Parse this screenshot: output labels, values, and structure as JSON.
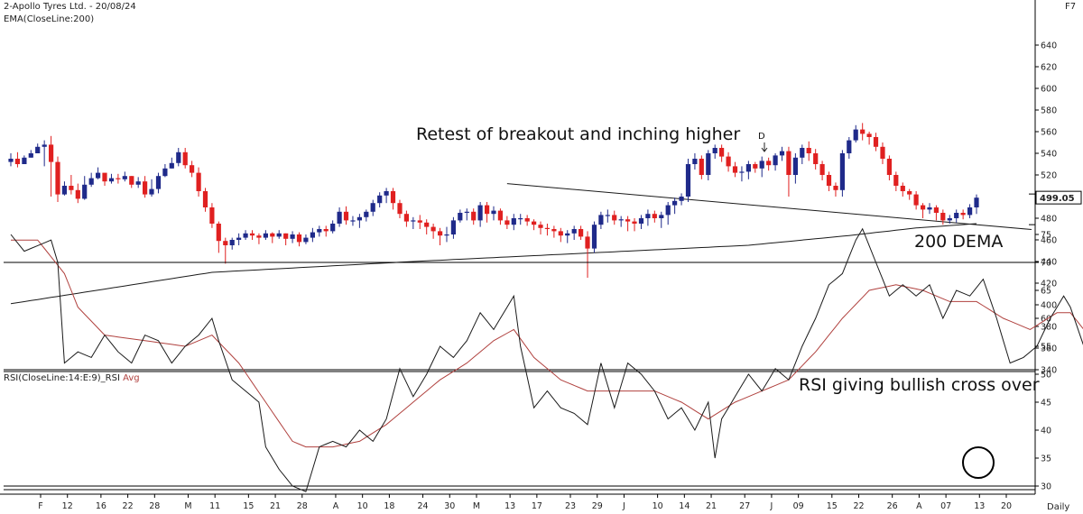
{
  "header": {
    "title": "2-Apollo Tyres Ltd. - 20/08/24",
    "indicator": "EMA(CloseLine:200)",
    "function_key": "F7",
    "rsi_label": "RSI(CloseLine:14:E:9)_RSI",
    "rsi_avg_label": "Avg",
    "timeframe": "Daily"
  },
  "annotations": {
    "breakout_note": "Retest of breakout and inching higher",
    "ema_note": "200 DEMA",
    "rsi_note": "RSI giving bullish cross over",
    "marker_d": "D"
  },
  "colors": {
    "bull": "#1f2a8a",
    "bear": "#e02020",
    "line": "#1a1a1a",
    "rsi_avg": "#b0413e",
    "price_box": "#ffffff"
  },
  "chart_data": [
    {
      "type": "candlestick",
      "title": "2-Apollo Tyres Ltd. - 20/08/24",
      "ylim": [
        340,
        650
      ],
      "yticks": [
        340,
        360,
        380,
        400,
        420,
        440,
        460,
        480,
        500,
        520,
        540,
        560,
        580,
        600,
        620,
        640
      ],
      "last_price": "499.05",
      "x_tick_labels": [
        "F",
        "12",
        "16",
        "22",
        "28",
        "M",
        "11",
        "15",
        "21",
        "28",
        "A",
        "10",
        "18",
        "24",
        "30",
        "M",
        "13",
        "17",
        "23",
        "29",
        "J",
        "10",
        "14",
        "21",
        "27",
        "J",
        "09",
        "15",
        "22",
        "26",
        "A",
        "07",
        "13",
        "20"
      ],
      "close": [
        535,
        530,
        536,
        540,
        546,
        548,
        532,
        502,
        510,
        506,
        498,
        511,
        517,
        522,
        514,
        517,
        516,
        519,
        511,
        514,
        502,
        507,
        519,
        526,
        531,
        541,
        529,
        522,
        505,
        490,
        475,
        459,
        455,
        460,
        462,
        466,
        464,
        462,
        466,
        463,
        466,
        461,
        465,
        458,
        462,
        467,
        470,
        468,
        475,
        486,
        478,
        478,
        481,
        486,
        494,
        501,
        505,
        494,
        484,
        477,
        478,
        476,
        472,
        468,
        464,
        465,
        478,
        485,
        486,
        478,
        492,
        484,
        487,
        478,
        474,
        480,
        480,
        477,
        474,
        471,
        470,
        468,
        464,
        466,
        470,
        463,
        452,
        474,
        483,
        483,
        478,
        479,
        477,
        475,
        480,
        484,
        480,
        483,
        492,
        496,
        500,
        530,
        535,
        520,
        540,
        545,
        537,
        528,
        522,
        523,
        530,
        526,
        533,
        529,
        538,
        542,
        520,
        536,
        545,
        540,
        530,
        520,
        510,
        506,
        540,
        552,
        562,
        558,
        555,
        546,
        535,
        520,
        510,
        505,
        502,
        492,
        488,
        490,
        485,
        478,
        480,
        485,
        483,
        490,
        499
      ],
      "high": [
        540,
        541,
        538,
        543,
        549,
        552,
        556,
        537,
        514,
        520,
        512,
        519,
        522,
        527,
        519,
        521,
        521,
        523,
        519,
        518,
        519,
        516,
        522,
        530,
        536,
        545,
        545,
        533,
        527,
        508,
        494,
        477,
        462,
        462,
        466,
        469,
        469,
        466,
        469,
        467,
        469,
        466,
        468,
        467,
        465,
        471,
        473,
        473,
        478,
        490,
        491,
        482,
        484,
        488,
        497,
        504,
        508,
        508,
        497,
        487,
        481,
        483,
        479,
        475,
        471,
        472,
        481,
        488,
        489,
        489,
        495,
        495,
        491,
        489,
        482,
        484,
        484,
        483,
        479,
        477,
        475,
        473,
        471,
        469,
        473,
        473,
        468,
        477,
        486,
        488,
        487,
        482,
        482,
        480,
        483,
        488,
        487,
        486,
        495,
        499,
        503,
        535,
        540,
        538,
        543,
        548,
        548,
        541,
        532,
        528,
        533,
        532,
        537,
        536,
        540,
        546,
        546,
        540,
        548,
        551,
        544,
        533,
        523,
        513,
        543,
        555,
        566,
        568,
        560,
        559,
        550,
        538,
        523,
        513,
        507,
        505,
        494,
        494,
        492,
        488,
        483,
        488,
        488,
        493,
        502
      ],
      "low": [
        528,
        527,
        532,
        536,
        542,
        528,
        500,
        495,
        501,
        502,
        494,
        497,
        509,
        516,
        510,
        512,
        512,
        514,
        508,
        508,
        499,
        500,
        503,
        518,
        526,
        528,
        526,
        518,
        500,
        486,
        471,
        448,
        438,
        451,
        455,
        460,
        460,
        456,
        460,
        457,
        461,
        455,
        457,
        454,
        456,
        458,
        463,
        463,
        466,
        472,
        474,
        473,
        471,
        477,
        482,
        490,
        494,
        488,
        480,
        472,
        470,
        470,
        465,
        461,
        455,
        458,
        461,
        476,
        478,
        474,
        472,
        476,
        478,
        474,
        470,
        469,
        474,
        473,
        469,
        465,
        464,
        462,
        458,
        457,
        460,
        460,
        425,
        448,
        470,
        476,
        474,
        472,
        468,
        468,
        470,
        473,
        476,
        471,
        474,
        484,
        492,
        495,
        525,
        516,
        515,
        535,
        532,
        523,
        518,
        514,
        516,
        522,
        518,
        524,
        524,
        533,
        500,
        512,
        530,
        533,
        525,
        515,
        505,
        500,
        500,
        535,
        550,
        552,
        548,
        542,
        530,
        515,
        505,
        500,
        497,
        488,
        480,
        484,
        478,
        474,
        475,
        476,
        479,
        480,
        484
      ],
      "ema200_anchors": [
        [
          0,
          401
        ],
        [
          30,
          430
        ],
        [
          60,
          440
        ],
        [
          90,
          449
        ],
        [
          110,
          455
        ],
        [
          125,
          464
        ],
        [
          135,
          471
        ],
        [
          144,
          475
        ]
      ],
      "trendline_points": [
        [
          74,
          512
        ],
        [
          144,
          474
        ]
      ],
      "annotations": [
        "Retest of breakout and inching higher",
        "200 DEMA"
      ]
    },
    {
      "type": "line",
      "title": "RSI(CloseLine:14:E:9)_RSI",
      "ylim": [
        27,
        80
      ],
      "yticks": [
        30,
        35,
        40,
        45,
        50,
        55,
        60,
        65,
        70,
        75
      ],
      "hlines": [
        70,
        30
      ],
      "series_names": [
        "RSI",
        "Avg"
      ],
      "rsi_anchors": [
        [
          0,
          75
        ],
        [
          2,
          72
        ],
        [
          6,
          74
        ],
        [
          7,
          70
        ],
        [
          8,
          52
        ],
        [
          10,
          54
        ],
        [
          12,
          53
        ],
        [
          14,
          57
        ],
        [
          16,
          54
        ],
        [
          18,
          52
        ],
        [
          20,
          57
        ],
        [
          22,
          56
        ],
        [
          24,
          52
        ],
        [
          26,
          55
        ],
        [
          28,
          57
        ],
        [
          30,
          60
        ],
        [
          31,
          56
        ],
        [
          33,
          49
        ],
        [
          35,
          47
        ],
        [
          37,
          45
        ],
        [
          38,
          37
        ],
        [
          40,
          33
        ],
        [
          42,
          30
        ],
        [
          44,
          29
        ],
        [
          46,
          37
        ],
        [
          48,
          38
        ],
        [
          50,
          37
        ],
        [
          52,
          40
        ],
        [
          54,
          38
        ],
        [
          56,
          42
        ],
        [
          58,
          51
        ],
        [
          60,
          46
        ],
        [
          62,
          50
        ],
        [
          64,
          55
        ],
        [
          66,
          53
        ],
        [
          68,
          56
        ],
        [
          70,
          61
        ],
        [
          72,
          58
        ],
        [
          74,
          62
        ],
        [
          75,
          64
        ],
        [
          76,
          55
        ],
        [
          78,
          44
        ],
        [
          80,
          47
        ],
        [
          82,
          44
        ],
        [
          84,
          43
        ],
        [
          86,
          41
        ],
        [
          88,
          52
        ],
        [
          90,
          44
        ],
        [
          92,
          52
        ],
        [
          94,
          50
        ],
        [
          96,
          47
        ],
        [
          98,
          42
        ],
        [
          100,
          44
        ],
        [
          102,
          40
        ],
        [
          104,
          45
        ],
        [
          105,
          35
        ],
        [
          106,
          42
        ],
        [
          108,
          46
        ],
        [
          110,
          50
        ],
        [
          112,
          47
        ],
        [
          114,
          51
        ],
        [
          116,
          49
        ],
        [
          118,
          55
        ],
        [
          120,
          60
        ],
        [
          122,
          66
        ],
        [
          124,
          68
        ],
        [
          126,
          74
        ],
        [
          127,
          76
        ],
        [
          129,
          70
        ],
        [
          131,
          64
        ],
        [
          133,
          66
        ],
        [
          135,
          64
        ],
        [
          137,
          66
        ],
        [
          139,
          60
        ],
        [
          141,
          65
        ],
        [
          143,
          64
        ],
        [
          145,
          67
        ],
        [
          147,
          60
        ],
        [
          149,
          52
        ],
        [
          151,
          53
        ],
        [
          153,
          55
        ],
        [
          155,
          60
        ],
        [
          157,
          64
        ],
        [
          158,
          62
        ],
        [
          160,
          55
        ],
        [
          162,
          44
        ],
        [
          164,
          38
        ],
        [
          166,
          36
        ],
        [
          168,
          35
        ],
        [
          169,
          34
        ],
        [
          170,
          37
        ],
        [
          172,
          43
        ]
      ],
      "avg_anchors": [
        [
          0,
          74
        ],
        [
          4,
          74
        ],
        [
          8,
          68
        ],
        [
          10,
          62
        ],
        [
          14,
          57
        ],
        [
          20,
          56
        ],
        [
          26,
          55
        ],
        [
          30,
          57
        ],
        [
          34,
          52
        ],
        [
          38,
          45
        ],
        [
          42,
          38
        ],
        [
          44,
          37
        ],
        [
          48,
          37
        ],
        [
          52,
          38
        ],
        [
          56,
          41
        ],
        [
          60,
          45
        ],
        [
          64,
          49
        ],
        [
          68,
          52
        ],
        [
          72,
          56
        ],
        [
          75,
          58
        ],
        [
          78,
          53
        ],
        [
          82,
          49
        ],
        [
          86,
          47
        ],
        [
          90,
          47
        ],
        [
          96,
          47
        ],
        [
          100,
          45
        ],
        [
          104,
          42
        ],
        [
          108,
          45
        ],
        [
          112,
          47
        ],
        [
          116,
          49
        ],
        [
          120,
          54
        ],
        [
          124,
          60
        ],
        [
          128,
          65
        ],
        [
          132,
          66
        ],
        [
          136,
          65
        ],
        [
          140,
          63
        ],
        [
          144,
          63
        ],
        [
          148,
          60
        ],
        [
          152,
          58
        ],
        [
          156,
          61
        ],
        [
          158,
          61
        ],
        [
          162,
          55
        ],
        [
          166,
          48
        ],
        [
          170,
          43
        ],
        [
          172,
          41
        ]
      ],
      "annotations": [
        "RSI giving bullish cross over"
      ]
    }
  ]
}
